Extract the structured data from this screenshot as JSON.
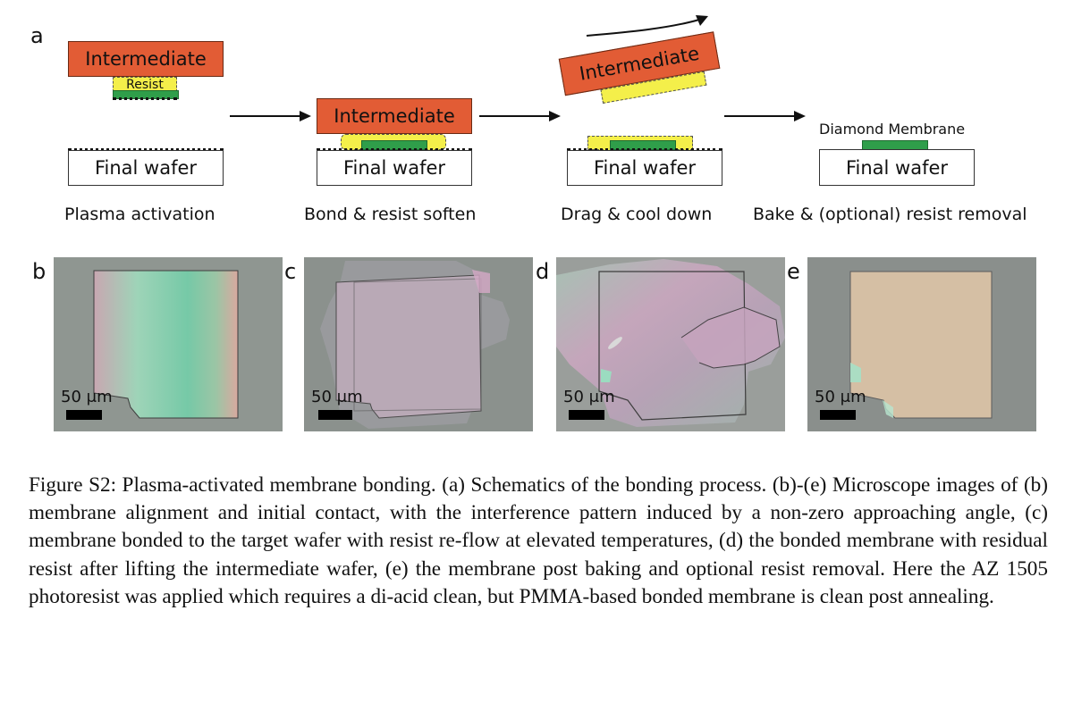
{
  "figure": {
    "panel_labels": {
      "a": "a",
      "b": "b",
      "c": "c",
      "d": "d",
      "e": "e"
    },
    "schematic": {
      "intermediate_label": "Intermediate",
      "resist_label": "Resist",
      "final_wafer_label": "Final wafer",
      "diamond_membrane_label": "Diamond Membrane",
      "steps": [
        "Plasma activation",
        "Bond & resist soften",
        "Drag & cool down",
        "Bake & (optional) resist removal"
      ]
    },
    "micrographs": {
      "scale_label": "50 μm"
    },
    "caption": "Figure S2: Plasma-activated membrane bonding. (a) Schematics of the bonding process. (b)-(e) Microscope images of (b) membrane alignment and initial contact, with the interference pattern induced by a non-zero approaching angle, (c) membrane bonded to the target wafer with resist re-flow at elevated temperatures, (d) the bonded membrane with residual resist after lifting the intermediate wafer, (e) the membrane post baking and optional resist removal. Here the AZ 1505 photoresist was applied which requires a di-acid clean, but PMMA-based bonded membrane is clean post annealing."
  },
  "colors": {
    "intermediate": "#e25c35",
    "resist": "#f4ef4a",
    "membrane": "#2f9e4a",
    "micrograph_background": "#8e9590"
  }
}
